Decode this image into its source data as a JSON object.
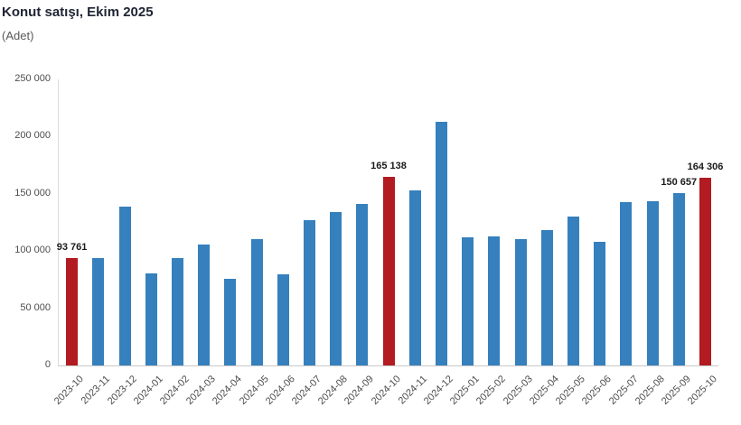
{
  "header": {
    "title": "Konut satışı, Ekim 2025",
    "subtitle": "(Adet)"
  },
  "colors": {
    "bar_blue": "#3580bd",
    "bar_red": "#b11b21",
    "title": "#1e2433",
    "axis_text": "#4d4d4d",
    "axis_line": "#dcdcdc"
  },
  "chart_data": {
    "type": "bar",
    "title": "Konut satışı, Ekim 2025",
    "unit_label": "(Adet)",
    "categories": [
      "2023-10",
      "2023-11",
      "2023-12",
      "2024-01",
      "2024-02",
      "2024-03",
      "2024-04",
      "2024-05",
      "2024-06",
      "2024-07",
      "2024-08",
      "2024-09",
      "2024-10",
      "2024-11",
      "2024-12",
      "2025-01",
      "2025-02",
      "2025-03",
      "2025-04",
      "2025-05",
      "2025-06",
      "2025-07",
      "2025-08",
      "2025-09",
      "2025-10"
    ],
    "values": [
      93761,
      93558,
      138577,
      80308,
      93902,
      105476,
      75569,
      110588,
      79313,
      127088,
      134155,
      140919,
      165138,
      153014,
      212637,
      112173,
      112818,
      110795,
      118359,
      130025,
      107723,
      142858,
      143319,
      150657,
      164306
    ],
    "highlight_categories": [
      "2023-10",
      "2024-10",
      "2025-10"
    ],
    "value_labels": {
      "2023-10": "93 761",
      "2024-10": "165 138",
      "2025-09": "150 657",
      "2025-10": "164 306"
    },
    "xlabel": "",
    "ylabel": "",
    "ylim": [
      0,
      250000
    ],
    "ytick_labels": [
      "250 000",
      "200 000",
      "150 000",
      "100 000",
      "50 000",
      "0"
    ],
    "grid": false,
    "legend": false
  }
}
